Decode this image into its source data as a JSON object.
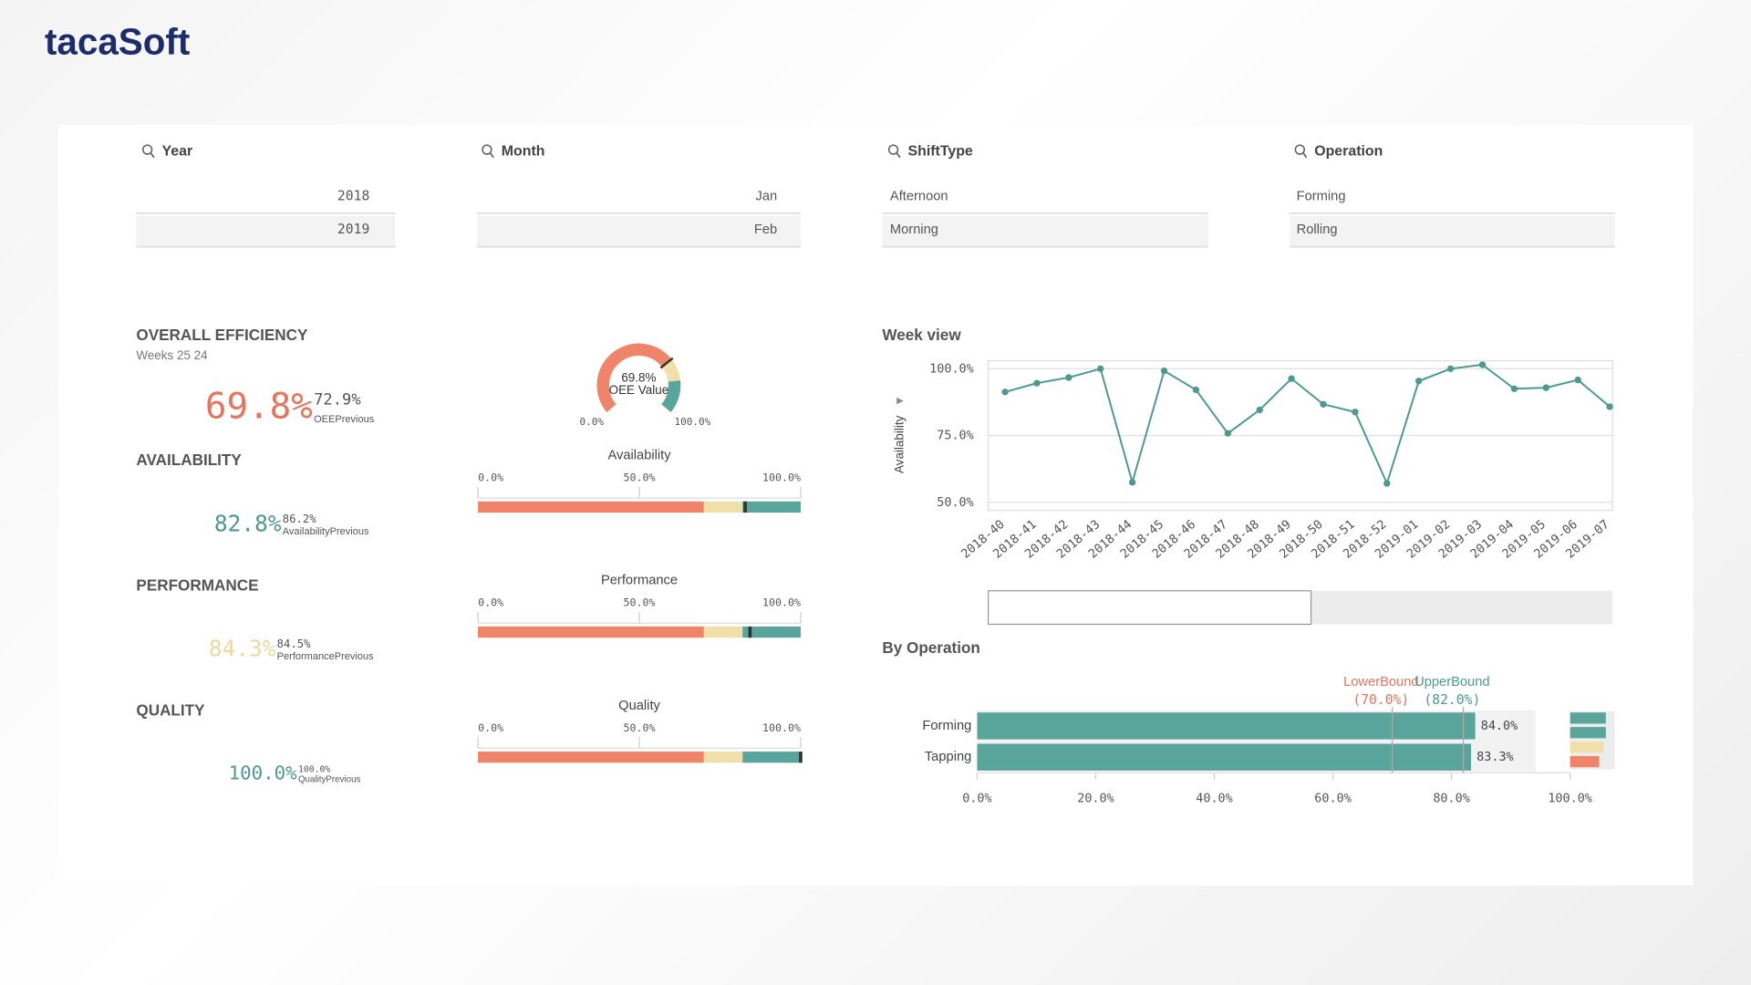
{
  "logo": "tacaSoft",
  "filters": [
    {
      "title": "Year",
      "items": [
        "2018",
        "2019"
      ]
    },
    {
      "title": "Month",
      "items": [
        "Jan",
        "Feb"
      ]
    },
    {
      "title": "ShiftType",
      "items": [
        "Afternoon",
        "Morning"
      ]
    },
    {
      "title": "Operation",
      "items": [
        "Forming",
        "Rolling"
      ]
    }
  ],
  "kpis": [
    {
      "title": "OVERALL EFFICIENCY",
      "subtitle": "Weeks 25 24",
      "value": "69.8%",
      "previous": "72.9%",
      "previous_label": "OEEPrevious",
      "color": "#e8735f"
    },
    {
      "title": "AVAILABILITY",
      "value": "82.8%",
      "previous": "86.2%",
      "previous_label": "AvailabilityPrevious",
      "color": "#4a9a8e"
    },
    {
      "title": "PERFORMANCE",
      "value": "84.3%",
      "previous": "84.5%",
      "previous_label": "PerformancePrevious",
      "color": "#ecd9a0"
    },
    {
      "title": "QUALITY",
      "value": "100.0%",
      "previous": "100.0%",
      "previous_label": "QualityPrevious",
      "color": "#4a9a8e"
    }
  ],
  "chart_data": [
    {
      "type": "gauge",
      "value": 69.8,
      "value_label": "69.8%",
      "label": "OEE Value",
      "ylim": [
        0,
        100
      ],
      "yticks": [
        {
          "value": 0,
          "label": "0.0%"
        },
        {
          "value": 100,
          "label": "100.0%"
        }
      ],
      "bands": [
        {
          "to": 70,
          "color": "#ef8468"
        },
        {
          "to": 82,
          "color": "#f0dfa9"
        },
        {
          "to": 100,
          "color": "#5aa59b"
        }
      ],
      "marker_color": "#333333"
    },
    {
      "type": "bullet",
      "title": "Availability",
      "value": 82.8,
      "xlim": [
        0,
        100
      ],
      "xticks": [
        {
          "value": 0,
          "label": "0.0%"
        },
        {
          "value": 50,
          "label": "50.0%"
        },
        {
          "value": 100,
          "label": "100.0%"
        }
      ],
      "bands": [
        {
          "to": 70,
          "color": "#ef8468"
        },
        {
          "to": 82,
          "color": "#f0dfa9"
        },
        {
          "to": 100,
          "color": "#5aa59b"
        }
      ],
      "marker_color": "#333333"
    },
    {
      "type": "bullet",
      "title": "Performance",
      "value": 84.3,
      "xlim": [
        0,
        100
      ],
      "xticks": [
        {
          "value": 0,
          "label": "0.0%"
        },
        {
          "value": 50,
          "label": "50.0%"
        },
        {
          "value": 100,
          "label": "100.0%"
        }
      ],
      "bands": [
        {
          "to": 70,
          "color": "#ef8468"
        },
        {
          "to": 82,
          "color": "#f0dfa9"
        },
        {
          "to": 100,
          "color": "#5aa59b"
        }
      ],
      "marker_color": "#333333"
    },
    {
      "type": "bullet",
      "title": "Quality",
      "value": 100,
      "xlim": [
        0,
        100
      ],
      "xticks": [
        {
          "value": 0,
          "label": "0.0%"
        },
        {
          "value": 50,
          "label": "50.0%"
        },
        {
          "value": 100,
          "label": "100.0%"
        }
      ],
      "bands": [
        {
          "to": 70,
          "color": "#ef8468"
        },
        {
          "to": 82,
          "color": "#f0dfa9"
        },
        {
          "to": 100,
          "color": "#5aa59b"
        }
      ],
      "marker_color": "#333333"
    },
    {
      "type": "line",
      "title": "Week view",
      "y_label": "Availability",
      "categories": [
        "2018-40",
        "2018-41",
        "2018-42",
        "2018-43",
        "2018-44",
        "2018-45",
        "2018-46",
        "2018-47",
        "2018-48",
        "2018-49",
        "2018-50",
        "2018-51",
        "2018-52",
        "2019-01",
        "2019-02",
        "2019-03",
        "2019-04",
        "2019-05",
        "2019-06",
        "2019-07"
      ],
      "values": [
        91.3,
        94.6,
        96.7,
        100,
        57.5,
        99.2,
        92.1,
        75.8,
        84.6,
        96.3,
        86.7,
        83.8,
        57.1,
        95.4,
        100,
        101.5,
        92.5,
        92.9,
        95.8,
        85.8
      ],
      "color": "#4a9a8e",
      "ylim": [
        47,
        103
      ],
      "yticks": [
        {
          "value": 100,
          "label": "100.0%"
        },
        {
          "value": 75,
          "label": "75.0%"
        },
        {
          "value": 50,
          "label": "50.0%"
        }
      ],
      "grid": true
    },
    {
      "type": "bar",
      "orientation": "horizontal",
      "title": "By Operation",
      "categories": [
        "Forming",
        "Tapping"
      ],
      "values": [
        84.0,
        83.3
      ],
      "value_labels": [
        "84.0%",
        "83.3%"
      ],
      "color": "#5aa59b",
      "xlim": [
        0,
        100
      ],
      "xticks": [
        {
          "value": 0,
          "label": "0.0%"
        },
        {
          "value": 20,
          "label": "20.0%"
        },
        {
          "value": 40,
          "label": "40.0%"
        },
        {
          "value": 60,
          "label": "60.0%"
        },
        {
          "value": 80,
          "label": "80.0%"
        },
        {
          "value": 100,
          "label": "100.0%"
        }
      ],
      "reference_lines": [
        {
          "name": "LowerBound",
          "label": "(70.0%)",
          "value": 70,
          "color": "#e8735f"
        },
        {
          "name": "UpperBound",
          "label": "(82.0%)",
          "value": 82,
          "color": "#4a9a8e"
        }
      ]
    }
  ]
}
